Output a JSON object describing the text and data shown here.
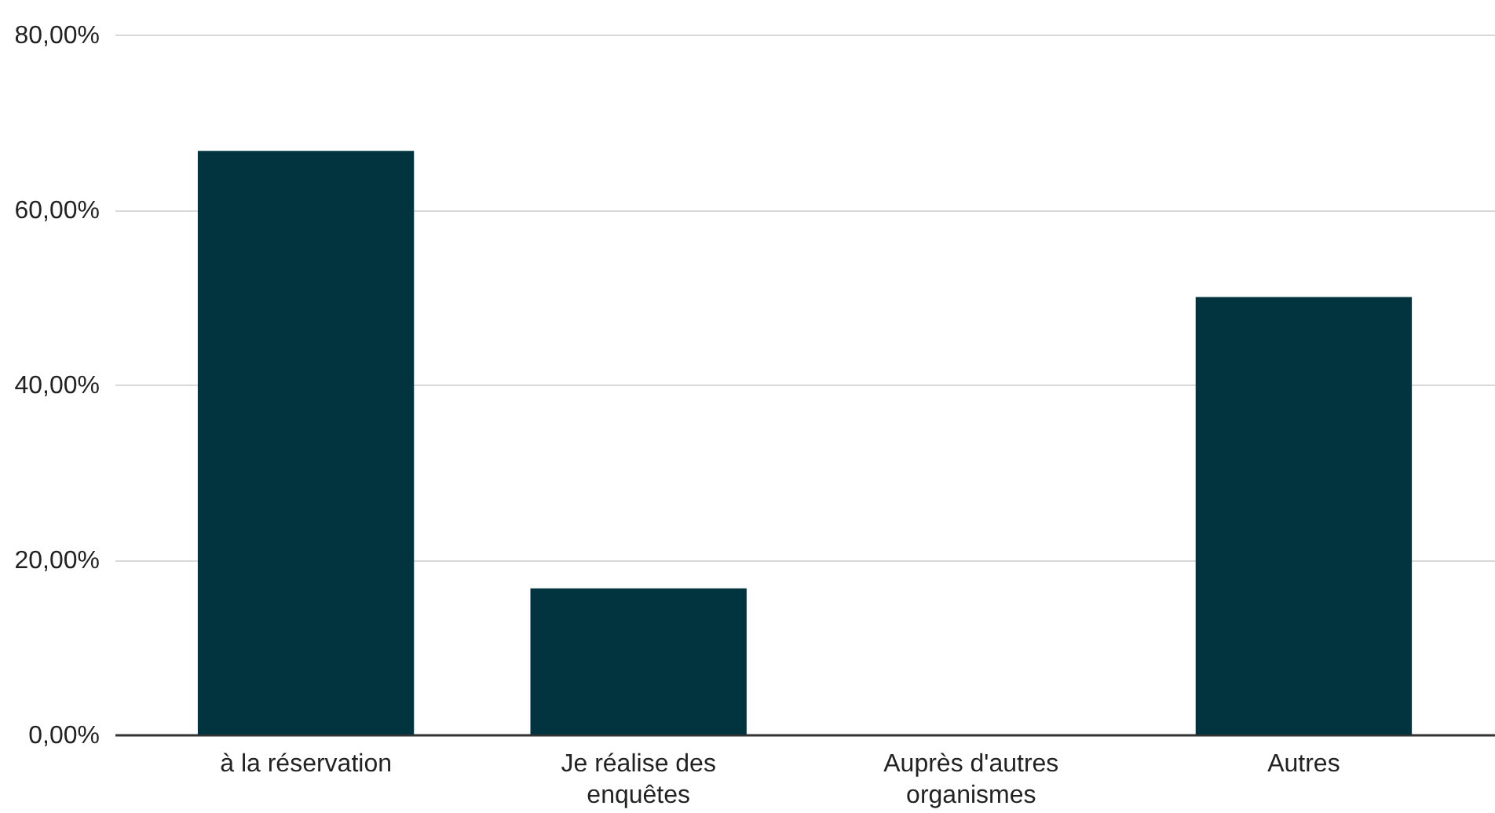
{
  "chart_data": {
    "type": "bar",
    "categories": [
      "à la réservation",
      "Je réalise des enquêtes",
      "Auprès d'autres organismes",
      "Autres"
    ],
    "values": [
      66.7,
      16.7,
      0,
      50
    ],
    "color": "#02343f",
    "ylim": [
      0,
      80
    ],
    "yticks": [
      {
        "value": 0,
        "label": "0,00%"
      },
      {
        "value": 20,
        "label": "20,00%"
      },
      {
        "value": 40,
        "label": "40,00%"
      },
      {
        "value": 60,
        "label": "60,00%"
      },
      {
        "value": 80,
        "label": "80,00%"
      }
    ],
    "grid": "y"
  }
}
